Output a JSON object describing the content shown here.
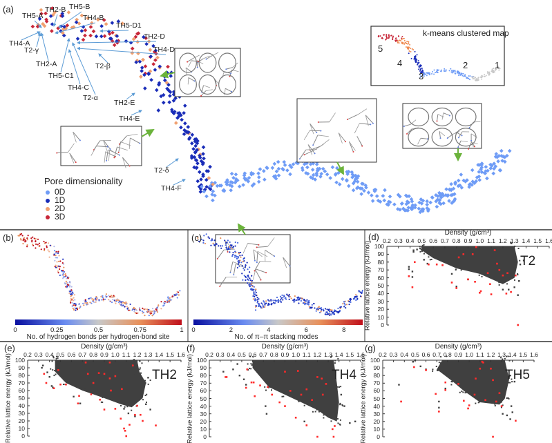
{
  "panel_a": {
    "letter": "(a)",
    "structure_labels": [
      "TH5-A",
      "TH2-B",
      "TH5-B",
      "TH4-B",
      "TH5-D1",
      "TH2-D",
      "TH4-D",
      "TH4-A",
      "T2-γ",
      "TH2-A",
      "T2-β",
      "TH5-C1",
      "TH4-C",
      "T2-α",
      "TH2-E",
      "TH4-E",
      "T2-δ",
      "TH4-F"
    ],
    "legend": {
      "title": "Pore dimensionality",
      "items": [
        {
          "label": "0D",
          "color": "#6f9cf6"
        },
        {
          "label": "1D",
          "color": "#1a2db8"
        },
        {
          "label": "2D",
          "color": "#f0a070"
        },
        {
          "label": "3D",
          "color": "#c8283a"
        }
      ]
    },
    "inset": {
      "title": "k-means clustered map",
      "clusters": [
        {
          "label": "1",
          "color": "#c8c8c8"
        },
        {
          "label": "2",
          "color": "#6f9cf6"
        },
        {
          "label": "3",
          "color": "#1a2db8"
        },
        {
          "label": "4",
          "color": "#f08a50"
        },
        {
          "label": "5",
          "color": "#c8283a"
        }
      ]
    },
    "arrow_color": "#6bb33b",
    "label_arrow_color": "#5b9bd5"
  },
  "panel_b": {
    "letter": "(b)",
    "colorbar": {
      "ticks": [
        "0",
        "0.25",
        "0.5",
        "0.75",
        "1"
      ],
      "range": [
        0,
        1
      ],
      "label": "No. of hydrogen bonds per hydrogen-bond site"
    }
  },
  "panel_c": {
    "letter": "(c)",
    "colorbar": {
      "ticks": [
        "0",
        "2",
        "4",
        "6",
        "8"
      ],
      "range": [
        0,
        9
      ],
      "label": "No. of π–π stacking modes"
    }
  },
  "chart_data": [
    {
      "panel": "(d)",
      "type": "scatter",
      "series_label": "T2",
      "xlabel": "Density (g/cm³)",
      "ylabel": "Relative lattice energy (kJ/mol)",
      "xlim": [
        0.2,
        1.6
      ],
      "ylim": [
        0,
        100
      ],
      "xticks": [
        "0.2",
        "0.3",
        "0.4",
        "0.5",
        "0.6",
        "0.7",
        "0.8",
        "0.9",
        "1.0",
        "1.1",
        "1.2",
        "1.3",
        "1.4",
        "1.5",
        "1.6"
      ],
      "yticks": [
        "0",
        "10",
        "20",
        "30",
        "40",
        "50",
        "60",
        "70",
        "80",
        "90",
        "100"
      ],
      "colors": {
        "all": "#404040",
        "highlight": "#ff2a2a"
      },
      "dense_region": [
        [
          0.5,
          100
        ],
        [
          1.3,
          100
        ],
        [
          1.33,
          80
        ],
        [
          1.3,
          60
        ],
        [
          1.2,
          52
        ],
        [
          1.0,
          65
        ],
        [
          0.8,
          72
        ],
        [
          0.6,
          85
        ],
        [
          0.5,
          95
        ]
      ],
      "gray_points": [
        [
          0.39,
          74
        ],
        [
          0.39,
          71
        ],
        [
          0.42,
          68
        ],
        [
          0.42,
          61
        ],
        [
          0.43,
          95
        ],
        [
          0.43,
          93
        ],
        [
          0.46,
          96
        ],
        [
          0.52,
          83
        ],
        [
          0.55,
          78
        ],
        [
          0.76,
          65
        ],
        [
          0.8,
          49
        ],
        [
          0.8,
          47
        ],
        [
          0.9,
          58
        ],
        [
          1.2,
          45
        ],
        [
          1.25,
          45
        ],
        [
          1.3,
          48
        ],
        [
          1.33,
          38
        ],
        [
          1.38,
          82
        ],
        [
          1.35,
          77
        ],
        [
          1.34,
          56
        ],
        [
          1.31,
          63
        ]
      ],
      "red_points": [
        [
          0.39,
          62
        ],
        [
          0.42,
          48
        ],
        [
          0.44,
          80
        ],
        [
          0.56,
          77
        ],
        [
          0.63,
          77
        ],
        [
          0.68,
          76
        ],
        [
          0.76,
          54
        ],
        [
          0.8,
          47
        ],
        [
          0.9,
          58
        ],
        [
          0.96,
          55
        ],
        [
          1.0,
          41
        ],
        [
          1.01,
          43
        ],
        [
          1.09,
          52
        ],
        [
          1.1,
          39
        ],
        [
          1.15,
          78
        ],
        [
          1.13,
          95
        ],
        [
          0.97,
          99
        ],
        [
          0.94,
          90
        ],
        [
          0.86,
          90
        ],
        [
          1.2,
          63
        ],
        [
          1.23,
          40
        ],
        [
          1.24,
          66
        ],
        [
          1.27,
          42
        ],
        [
          1.31,
          63
        ],
        [
          1.33,
          0
        ],
        [
          1.07,
          66
        ],
        [
          1.17,
          70
        ],
        [
          0.82,
          86
        ]
      ]
    },
    {
      "panel": "(e)",
      "type": "scatter",
      "series_label": "TH2",
      "xlabel": "Density (g/cm³)",
      "ylabel": "Relative lattice energy (kJ/mol)",
      "xlim": [
        0.2,
        1.6
      ],
      "ylim": [
        0,
        100
      ],
      "xticks": [
        "0.2",
        "0.3",
        "0.4",
        "0.5",
        "0.6",
        "0.7",
        "0.8",
        "0.9",
        "1.0",
        "1.1",
        "1.2",
        "1.3",
        "1.4",
        "1.5",
        "1.6"
      ],
      "yticks": [
        "0",
        "10",
        "20",
        "30",
        "40",
        "50",
        "60",
        "70",
        "80",
        "90",
        "100"
      ],
      "colors": {
        "all": "#404040",
        "highlight": "#ff2a2a"
      },
      "dense_region": [
        [
          0.45,
          100
        ],
        [
          1.2,
          100
        ],
        [
          1.22,
          85
        ],
        [
          1.28,
          70
        ],
        [
          1.25,
          50
        ],
        [
          1.15,
          38
        ],
        [
          1.05,
          42
        ],
        [
          0.9,
          50
        ],
        [
          0.7,
          60
        ],
        [
          0.55,
          70
        ],
        [
          0.45,
          85
        ]
      ],
      "gray_points": [
        [
          0.34,
          93
        ],
        [
          0.33,
          90
        ],
        [
          0.38,
          84
        ],
        [
          0.4,
          78
        ],
        [
          0.42,
          66
        ],
        [
          0.43,
          64
        ],
        [
          0.62,
          52
        ],
        [
          0.68,
          43
        ],
        [
          1.28,
          42
        ],
        [
          1.32,
          35
        ],
        [
          1.3,
          77
        ],
        [
          1.18,
          26
        ],
        [
          1.12,
          30
        ],
        [
          1.08,
          36
        ]
      ],
      "red_points": [
        [
          0.35,
          82
        ],
        [
          0.37,
          70
        ],
        [
          0.44,
          63
        ],
        [
          0.5,
          68
        ],
        [
          0.48,
          87
        ],
        [
          0.55,
          68
        ],
        [
          0.67,
          53
        ],
        [
          0.66,
          43
        ],
        [
          0.73,
          97
        ],
        [
          0.75,
          82
        ],
        [
          0.8,
          70
        ],
        [
          0.85,
          83
        ],
        [
          0.9,
          82
        ],
        [
          0.95,
          97
        ],
        [
          0.95,
          76
        ],
        [
          1.0,
          79
        ],
        [
          0.9,
          35
        ],
        [
          1.0,
          36
        ],
        [
          1.05,
          23
        ],
        [
          1.08,
          10
        ],
        [
          1.09,
          7
        ],
        [
          1.13,
          15
        ],
        [
          1.16,
          93
        ],
        [
          1.18,
          28
        ],
        [
          1.23,
          28
        ],
        [
          1.25,
          20
        ],
        [
          1.37,
          14
        ],
        [
          1.1,
          0
        ],
        [
          1.2,
          40
        ],
        [
          0.86,
          48
        ],
        [
          0.78,
          55
        ],
        [
          0.96,
          60
        ],
        [
          1.06,
          62
        ]
      ]
    },
    {
      "panel": "(f)",
      "type": "scatter",
      "series_label": "TH4",
      "xlabel": "Density (g/cm³)",
      "ylabel": "Relative lattice energy (kJ/mol)",
      "xlim": [
        0.2,
        1.6
      ],
      "ylim": [
        0,
        100
      ],
      "xticks": [
        "0.2",
        "0.3",
        "0.4",
        "0.5",
        "0.6",
        "0.7",
        "0.8",
        "0.9",
        "1.0",
        "1.1",
        "1.2",
        "1.3",
        "1.4",
        "1.5",
        "1.6"
      ],
      "yticks": [
        "0",
        "10",
        "20",
        "30",
        "40",
        "50",
        "60",
        "70",
        "80",
        "90",
        "100"
      ],
      "colors": {
        "all": "#404040",
        "highlight": "#ff2a2a"
      },
      "dense_region": [
        [
          0.6,
          100
        ],
        [
          1.35,
          100
        ],
        [
          1.38,
          70
        ],
        [
          1.4,
          45
        ],
        [
          1.38,
          20
        ],
        [
          1.3,
          25
        ],
        [
          1.2,
          35
        ],
        [
          1.05,
          45
        ],
        [
          0.9,
          55
        ],
        [
          0.75,
          65
        ],
        [
          0.6,
          90
        ]
      ],
      "gray_points": [
        [
          0.33,
          85
        ],
        [
          0.42,
          88
        ],
        [
          0.46,
          95
        ],
        [
          0.48,
          80
        ],
        [
          0.52,
          75
        ],
        [
          0.54,
          68
        ],
        [
          0.72,
          40
        ],
        [
          0.73,
          30
        ],
        [
          1.08,
          20
        ],
        [
          1.5,
          18
        ],
        [
          1.55,
          20
        ],
        [
          1.45,
          40
        ],
        [
          1.42,
          55
        ],
        [
          1.4,
          65
        ]
      ],
      "red_points": [
        [
          0.35,
          78
        ],
        [
          0.36,
          78
        ],
        [
          0.55,
          88
        ],
        [
          0.54,
          64
        ],
        [
          0.59,
          71
        ],
        [
          0.61,
          71
        ],
        [
          0.62,
          53
        ],
        [
          0.67,
          67
        ],
        [
          0.74,
          65
        ],
        [
          0.78,
          55
        ],
        [
          0.85,
          45
        ],
        [
          0.9,
          85
        ],
        [
          0.95,
          60
        ],
        [
          1.02,
          86
        ],
        [
          1.0,
          25
        ],
        [
          1.05,
          55
        ],
        [
          1.1,
          15
        ],
        [
          1.2,
          78
        ],
        [
          1.24,
          76
        ],
        [
          1.28,
          69
        ],
        [
          1.2,
          0
        ],
        [
          1.35,
          0
        ],
        [
          1.34,
          10
        ],
        [
          1.36,
          14
        ],
        [
          1.1,
          62
        ],
        [
          1.15,
          48
        ],
        [
          1.25,
          55
        ],
        [
          0.9,
          40
        ]
      ]
    },
    {
      "panel": "(g)",
      "type": "scatter",
      "series_label": "TH5",
      "xlabel": "Density (g/cm³)",
      "ylabel": "Relative lattice energy (kJ/mol)",
      "xlim": [
        0.2,
        1.6
      ],
      "ylim": [
        0,
        100
      ],
      "xticks": [
        "0.2",
        "0.3",
        "0.4",
        "0.5",
        "0.6",
        "0.7",
        "0.8",
        "0.9",
        "1.0",
        "1.1",
        "1.2",
        "1.3",
        "1.4",
        "1.5",
        "1.6"
      ],
      "yticks": [
        "0",
        "10",
        "20",
        "30",
        "40",
        "50",
        "60",
        "70",
        "80",
        "90",
        "100"
      ],
      "colors": {
        "all": "#404040",
        "highlight": "#ff2a2a"
      },
      "dense_region": [
        [
          0.75,
          100
        ],
        [
          1.33,
          100
        ],
        [
          1.37,
          75
        ],
        [
          1.33,
          50
        ],
        [
          1.28,
          42
        ],
        [
          1.1,
          45
        ],
        [
          0.95,
          60
        ],
        [
          0.85,
          72
        ],
        [
          0.7,
          88
        ]
      ],
      "gray_points": [
        [
          0.35,
          68
        ],
        [
          0.48,
          98
        ],
        [
          0.5,
          100
        ],
        [
          0.55,
          92
        ],
        [
          0.6,
          88
        ],
        [
          0.72,
          46
        ],
        [
          0.72,
          38
        ],
        [
          0.78,
          63
        ],
        [
          1.31,
          30
        ],
        [
          1.35,
          28
        ],
        [
          1.38,
          23
        ],
        [
          1.4,
          32
        ],
        [
          1.42,
          72
        ],
        [
          1.38,
          80
        ],
        [
          1.39,
          40
        ]
      ],
      "red_points": [
        [
          0.37,
          46
        ],
        [
          0.49,
          91
        ],
        [
          0.6,
          87
        ],
        [
          0.69,
          56
        ],
        [
          0.72,
          33
        ],
        [
          0.78,
          71
        ],
        [
          0.78,
          61
        ],
        [
          0.9,
          69
        ],
        [
          0.95,
          47
        ],
        [
          0.99,
          37
        ],
        [
          1.0,
          41
        ],
        [
          1.05,
          55
        ],
        [
          1.1,
          89
        ],
        [
          1.12,
          98
        ],
        [
          1.13,
          97
        ],
        [
          1.15,
          48
        ],
        [
          1.2,
          89
        ],
        [
          1.22,
          74
        ],
        [
          1.25,
          46
        ],
        [
          1.28,
          57
        ],
        [
          1.3,
          40
        ],
        [
          1.22,
          0
        ],
        [
          1.43,
          21
        ],
        [
          1.06,
          76
        ]
      ]
    }
  ]
}
